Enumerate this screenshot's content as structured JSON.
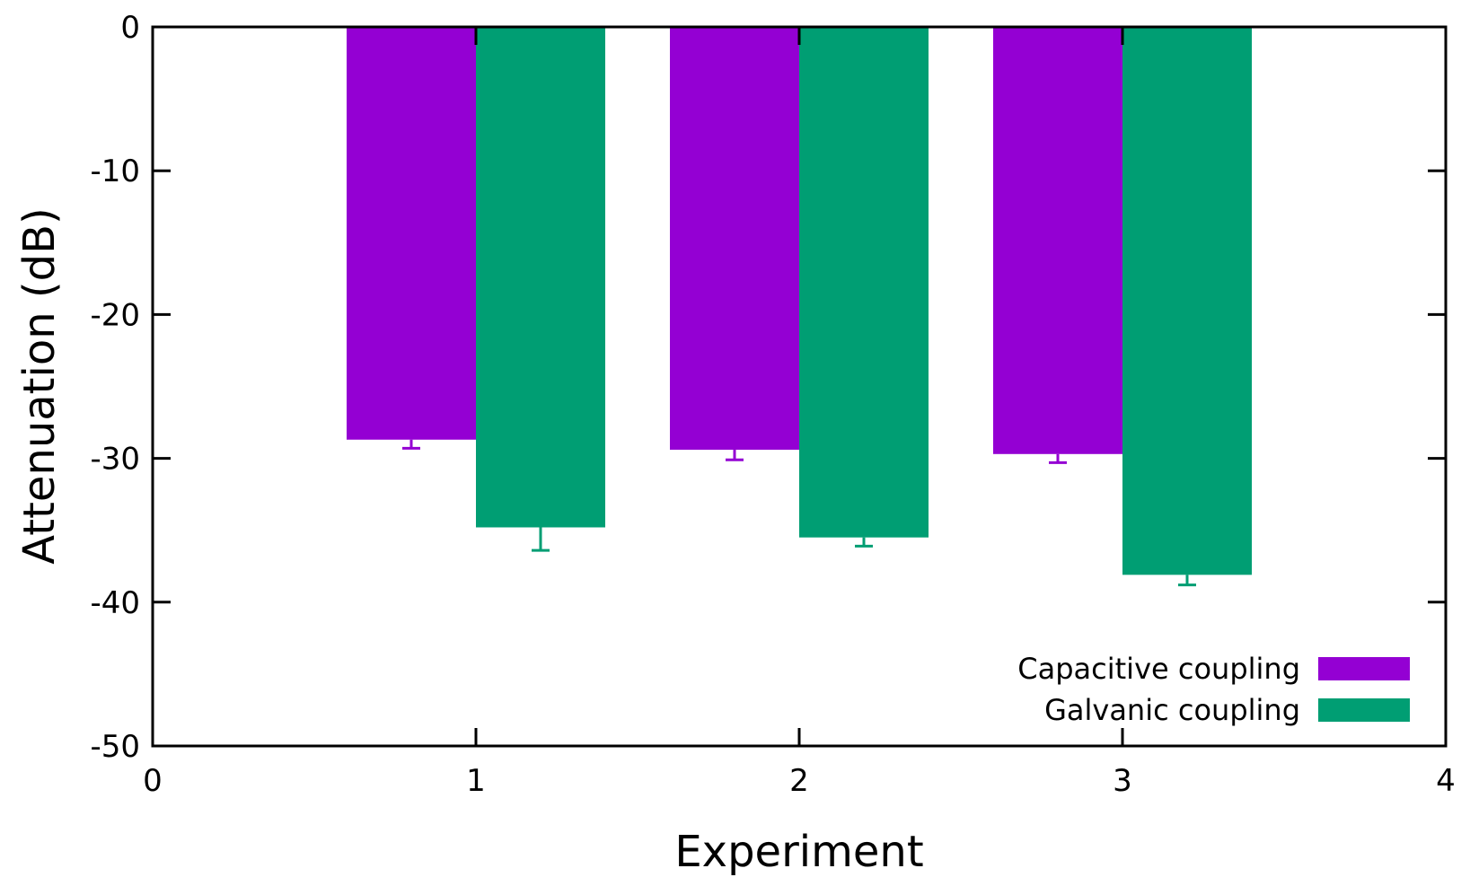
{
  "chart_data": {
    "type": "bar",
    "title": "",
    "xlabel": "Experiment",
    "ylabel": "Attenuation (dB)",
    "xlim": [
      0,
      4
    ],
    "ylim": [
      -50,
      0
    ],
    "xticks": [
      0,
      1,
      2,
      3,
      4
    ],
    "yticks": [
      0,
      -10,
      -20,
      -30,
      -40,
      -50
    ],
    "grid": false,
    "legend_position": "bottom-right",
    "categories": [
      1,
      2,
      3
    ],
    "series": [
      {
        "name": "Capacitive coupling",
        "color": "#9400d3",
        "offset": -0.2,
        "values": [
          -28.7,
          -29.4,
          -29.7
        ],
        "err_low": [
          -29.3,
          -30.1,
          -30.3
        ]
      },
      {
        "name": "Galvanic coupling",
        "color": "#009e73",
        "offset": 0.2,
        "values": [
          -34.8,
          -35.5,
          -38.1
        ],
        "err_low": [
          -36.4,
          -36.1,
          -38.8
        ]
      }
    ]
  }
}
